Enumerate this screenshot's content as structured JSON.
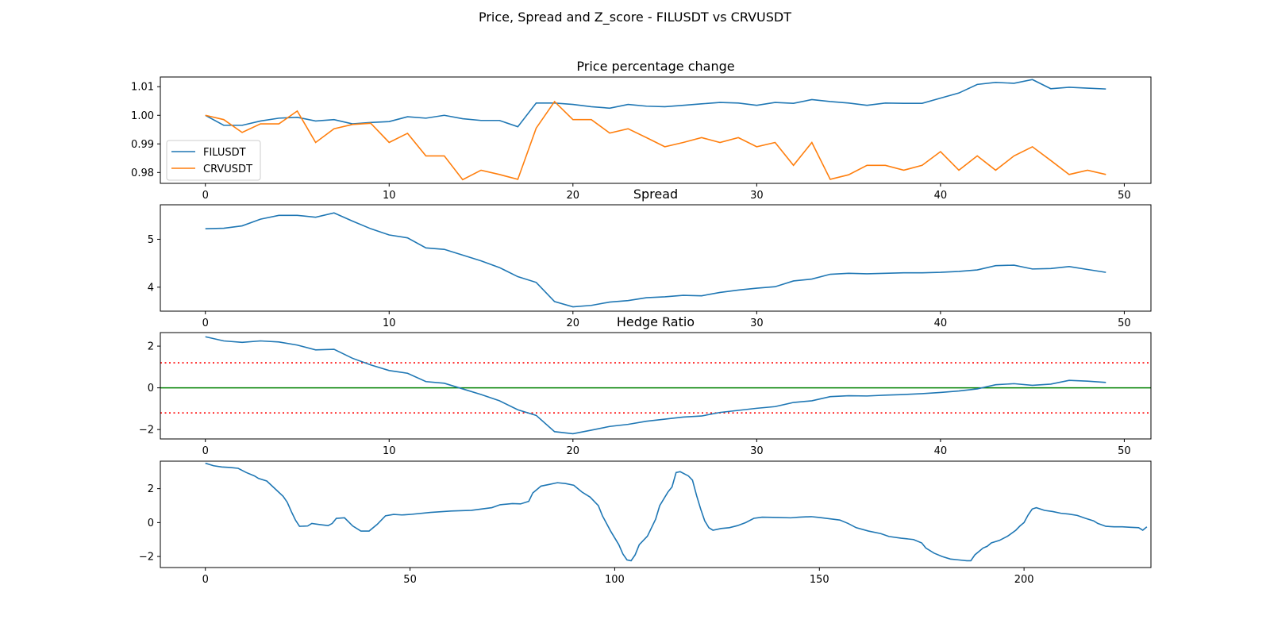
{
  "figure": {
    "suptitle": "Price, Spread and Z_score - FILUSDT vs CRVUSDT"
  },
  "colors": {
    "series1": "#1f77b4",
    "series2": "#ff7f0e",
    "zero_line": "#008000",
    "threshold_line": "#ff0000"
  },
  "chart_data": [
    {
      "type": "line",
      "title": "Price percentage change",
      "xlim": [
        -2.45,
        51.45
      ],
      "ylim": [
        0.9762,
        1.0134
      ],
      "xticks": [
        0,
        10,
        20,
        30,
        40,
        50
      ],
      "yticks": [
        0.98,
        0.99,
        1.0,
        1.01
      ],
      "ytick_labels": [
        "0.98",
        "0.99",
        "1.00",
        "1.01"
      ],
      "legend": {
        "placement": "lower-left"
      },
      "series": [
        {
          "name": "FILUSDT",
          "color": "#1f77b4",
          "values": [
            1.0,
            0.9965,
            0.9965,
            0.998,
            0.999,
            0.9993,
            0.998,
            0.9985,
            0.997,
            0.9975,
            0.9978,
            0.9995,
            0.999,
            1.0,
            0.9988,
            0.9982,
            0.9982,
            0.996,
            1.0043,
            1.0043,
            1.0038,
            1.003,
            1.0025,
            1.0038,
            1.0032,
            1.003,
            1.0035,
            1.004,
            1.0045,
            1.0043,
            1.0035,
            1.0045,
            1.0042,
            1.0055,
            1.0048,
            1.0043,
            1.0035,
            1.0043,
            1.0042,
            1.0042,
            1.006,
            1.0078,
            1.0108,
            1.0115,
            1.0112,
            1.0125,
            1.0093,
            1.0098,
            1.0095,
            1.0092
          ]
        },
        {
          "name": "CRVUSDT",
          "color": "#ff7f0e",
          "values": [
            1.0,
            0.9985,
            0.994,
            0.997,
            0.997,
            1.0015,
            0.9905,
            0.9953,
            0.9968,
            0.9972,
            0.9905,
            0.9937,
            0.9858,
            0.9858,
            0.9775,
            0.9808,
            0.9793,
            0.9776,
            0.9955,
            1.0048,
            0.9985,
            0.9985,
            0.9938,
            0.9953,
            0.9922,
            0.989,
            0.9905,
            0.9922,
            0.9905,
            0.9922,
            0.989,
            0.9905,
            0.9825,
            0.9905,
            0.9776,
            0.9792,
            0.9825,
            0.9825,
            0.9808,
            0.9825,
            0.9873,
            0.9808,
            0.9858,
            0.9808,
            0.9858,
            0.989,
            0.9842,
            0.9793,
            0.9808,
            0.9793
          ]
        }
      ]
    },
    {
      "type": "line",
      "title": "Spread",
      "xlim": [
        -2.45,
        51.45
      ],
      "ylim": [
        3.5,
        5.72
      ],
      "xticks": [
        0,
        10,
        20,
        30,
        40,
        50
      ],
      "yticks": [
        4,
        5
      ],
      "ytick_labels": [
        "4",
        "5"
      ],
      "series": [
        {
          "color": "#1f77b4",
          "values": [
            5.22,
            5.23,
            5.28,
            5.42,
            5.5,
            5.5,
            5.46,
            5.55,
            5.38,
            5.22,
            5.09,
            5.03,
            4.82,
            4.79,
            4.67,
            4.55,
            4.41,
            4.22,
            4.1,
            3.7,
            3.59,
            3.62,
            3.69,
            3.72,
            3.78,
            3.8,
            3.83,
            3.82,
            3.89,
            3.94,
            3.98,
            4.01,
            4.13,
            4.17,
            4.27,
            4.29,
            4.28,
            4.29,
            4.3,
            4.3,
            4.31,
            4.33,
            4.36,
            4.45,
            4.46,
            4.38,
            4.39,
            4.43,
            4.37,
            4.31
          ]
        }
      ]
    },
    {
      "type": "line",
      "title": "Hedge Ratio",
      "xlim": [
        -2.45,
        51.45
      ],
      "ylim": [
        -2.45,
        2.65
      ],
      "xticks": [
        0,
        10,
        20,
        30,
        40,
        50
      ],
      "yticks": [
        -2,
        0,
        2
      ],
      "ytick_labels": [
        "−2",
        "0",
        "2"
      ],
      "hlines": [
        {
          "y": 0,
          "color": "#008000",
          "style": "solid"
        },
        {
          "y": 1.2,
          "color": "#ff0000",
          "style": "dotted"
        },
        {
          "y": -1.2,
          "color": "#ff0000",
          "style": "dotted"
        }
      ],
      "series": [
        {
          "color": "#1f77b4",
          "values": [
            2.45,
            2.25,
            2.18,
            2.25,
            2.2,
            2.05,
            1.82,
            1.85,
            1.42,
            1.1,
            0.83,
            0.7,
            0.3,
            0.22,
            -0.05,
            -0.32,
            -0.62,
            -1.05,
            -1.32,
            -2.1,
            -2.2,
            -2.03,
            -1.85,
            -1.75,
            -1.6,
            -1.5,
            -1.4,
            -1.35,
            -1.18,
            -1.08,
            -0.98,
            -0.9,
            -0.7,
            -0.62,
            -0.42,
            -0.38,
            -0.39,
            -0.35,
            -0.32,
            -0.28,
            -0.22,
            -0.15,
            -0.05,
            0.15,
            0.2,
            0.12,
            0.18,
            0.36,
            0.32,
            0.26
          ]
        }
      ]
    },
    {
      "type": "line",
      "title": "",
      "xlim": [
        -11,
        231
      ],
      "ylim": [
        -2.65,
        3.62
      ],
      "xticks": [
        0,
        50,
        100,
        150,
        200
      ],
      "yticks": [
        -2,
        0,
        2
      ],
      "ytick_labels": [
        "−2",
        "0",
        "2"
      ],
      "series": [
        {
          "color": "#1f77b4",
          "points": [
            [
              0,
              3.5
            ],
            [
              2,
              3.35
            ],
            [
              4,
              3.28
            ],
            [
              6,
              3.25
            ],
            [
              8,
              3.2
            ],
            [
              10,
              2.95
            ],
            [
              12,
              2.75
            ],
            [
              13,
              2.6
            ],
            [
              15,
              2.45
            ],
            [
              17,
              2.0
            ],
            [
              19,
              1.55
            ],
            [
              20,
              1.2
            ],
            [
              21,
              0.65
            ],
            [
              22,
              0.15
            ],
            [
              23,
              -0.22
            ],
            [
              25,
              -0.2
            ],
            [
              26,
              -0.05
            ],
            [
              28,
              -0.12
            ],
            [
              30,
              -0.18
            ],
            [
              31,
              -0.05
            ],
            [
              32,
              0.25
            ],
            [
              34,
              0.28
            ],
            [
              36,
              -0.2
            ],
            [
              38,
              -0.5
            ],
            [
              40,
              -0.5
            ],
            [
              42,
              -0.1
            ],
            [
              44,
              0.4
            ],
            [
              46,
              0.48
            ],
            [
              48,
              0.45
            ],
            [
              50,
              0.48
            ],
            [
              55,
              0.6
            ],
            [
              60,
              0.68
            ],
            [
              65,
              0.72
            ],
            [
              70,
              0.88
            ],
            [
              72,
              1.05
            ],
            [
              75,
              1.12
            ],
            [
              77,
              1.1
            ],
            [
              79,
              1.25
            ],
            [
              80,
              1.75
            ],
            [
              82,
              2.15
            ],
            [
              84,
              2.25
            ],
            [
              86,
              2.35
            ],
            [
              88,
              2.3
            ],
            [
              90,
              2.2
            ],
            [
              92,
              1.8
            ],
            [
              94,
              1.5
            ],
            [
              96,
              1.0
            ],
            [
              97,
              0.4
            ],
            [
              99,
              -0.5
            ],
            [
              101,
              -1.3
            ],
            [
              102,
              -1.85
            ],
            [
              103,
              -2.2
            ],
            [
              104,
              -2.25
            ],
            [
              105,
              -1.9
            ],
            [
              106,
              -1.3
            ],
            [
              108,
              -0.8
            ],
            [
              110,
              0.2
            ],
            [
              111,
              1.0
            ],
            [
              113,
              1.8
            ],
            [
              114,
              2.1
            ],
            [
              115,
              2.95
            ],
            [
              116,
              3.0
            ],
            [
              118,
              2.75
            ],
            [
              119,
              2.5
            ],
            [
              120,
              1.6
            ],
            [
              121,
              0.8
            ],
            [
              122,
              0.1
            ],
            [
              123,
              -0.3
            ],
            [
              124,
              -0.45
            ],
            [
              126,
              -0.35
            ],
            [
              128,
              -0.3
            ],
            [
              130,
              -0.18
            ],
            [
              132,
              0.0
            ],
            [
              134,
              0.25
            ],
            [
              136,
              0.32
            ],
            [
              140,
              0.3
            ],
            [
              143,
              0.28
            ],
            [
              145,
              0.32
            ],
            [
              148,
              0.35
            ],
            [
              150,
              0.3
            ],
            [
              155,
              0.15
            ],
            [
              157,
              -0.05
            ],
            [
              159,
              -0.3
            ],
            [
              162,
              -0.5
            ],
            [
              165,
              -0.65
            ],
            [
              167,
              -0.82
            ],
            [
              170,
              -0.92
            ],
            [
              173,
              -1.0
            ],
            [
              175,
              -1.2
            ],
            [
              176,
              -1.5
            ],
            [
              178,
              -1.8
            ],
            [
              180,
              -2.0
            ],
            [
              182,
              -2.15
            ],
            [
              184,
              -2.2
            ],
            [
              186,
              -2.25
            ],
            [
              187,
              -2.25
            ],
            [
              188,
              -1.9
            ],
            [
              190,
              -1.5
            ],
            [
              191,
              -1.4
            ],
            [
              192,
              -1.2
            ],
            [
              194,
              -1.05
            ],
            [
              196,
              -0.8
            ],
            [
              198,
              -0.45
            ],
            [
              199,
              -0.2
            ],
            [
              200,
              0.0
            ],
            [
              201,
              0.45
            ],
            [
              202,
              0.8
            ],
            [
              203,
              0.88
            ],
            [
              205,
              0.72
            ],
            [
              207,
              0.65
            ],
            [
              209,
              0.55
            ],
            [
              211,
              0.5
            ],
            [
              213,
              0.42
            ],
            [
              215,
              0.25
            ],
            [
              217,
              0.1
            ],
            [
              218,
              -0.05
            ],
            [
              220,
              -0.22
            ],
            [
              222,
              -0.25
            ],
            [
              224,
              -0.25
            ],
            [
              226,
              -0.28
            ],
            [
              228,
              -0.3
            ],
            [
              229,
              -0.45
            ],
            [
              230,
              -0.25
            ]
          ]
        }
      ]
    }
  ]
}
